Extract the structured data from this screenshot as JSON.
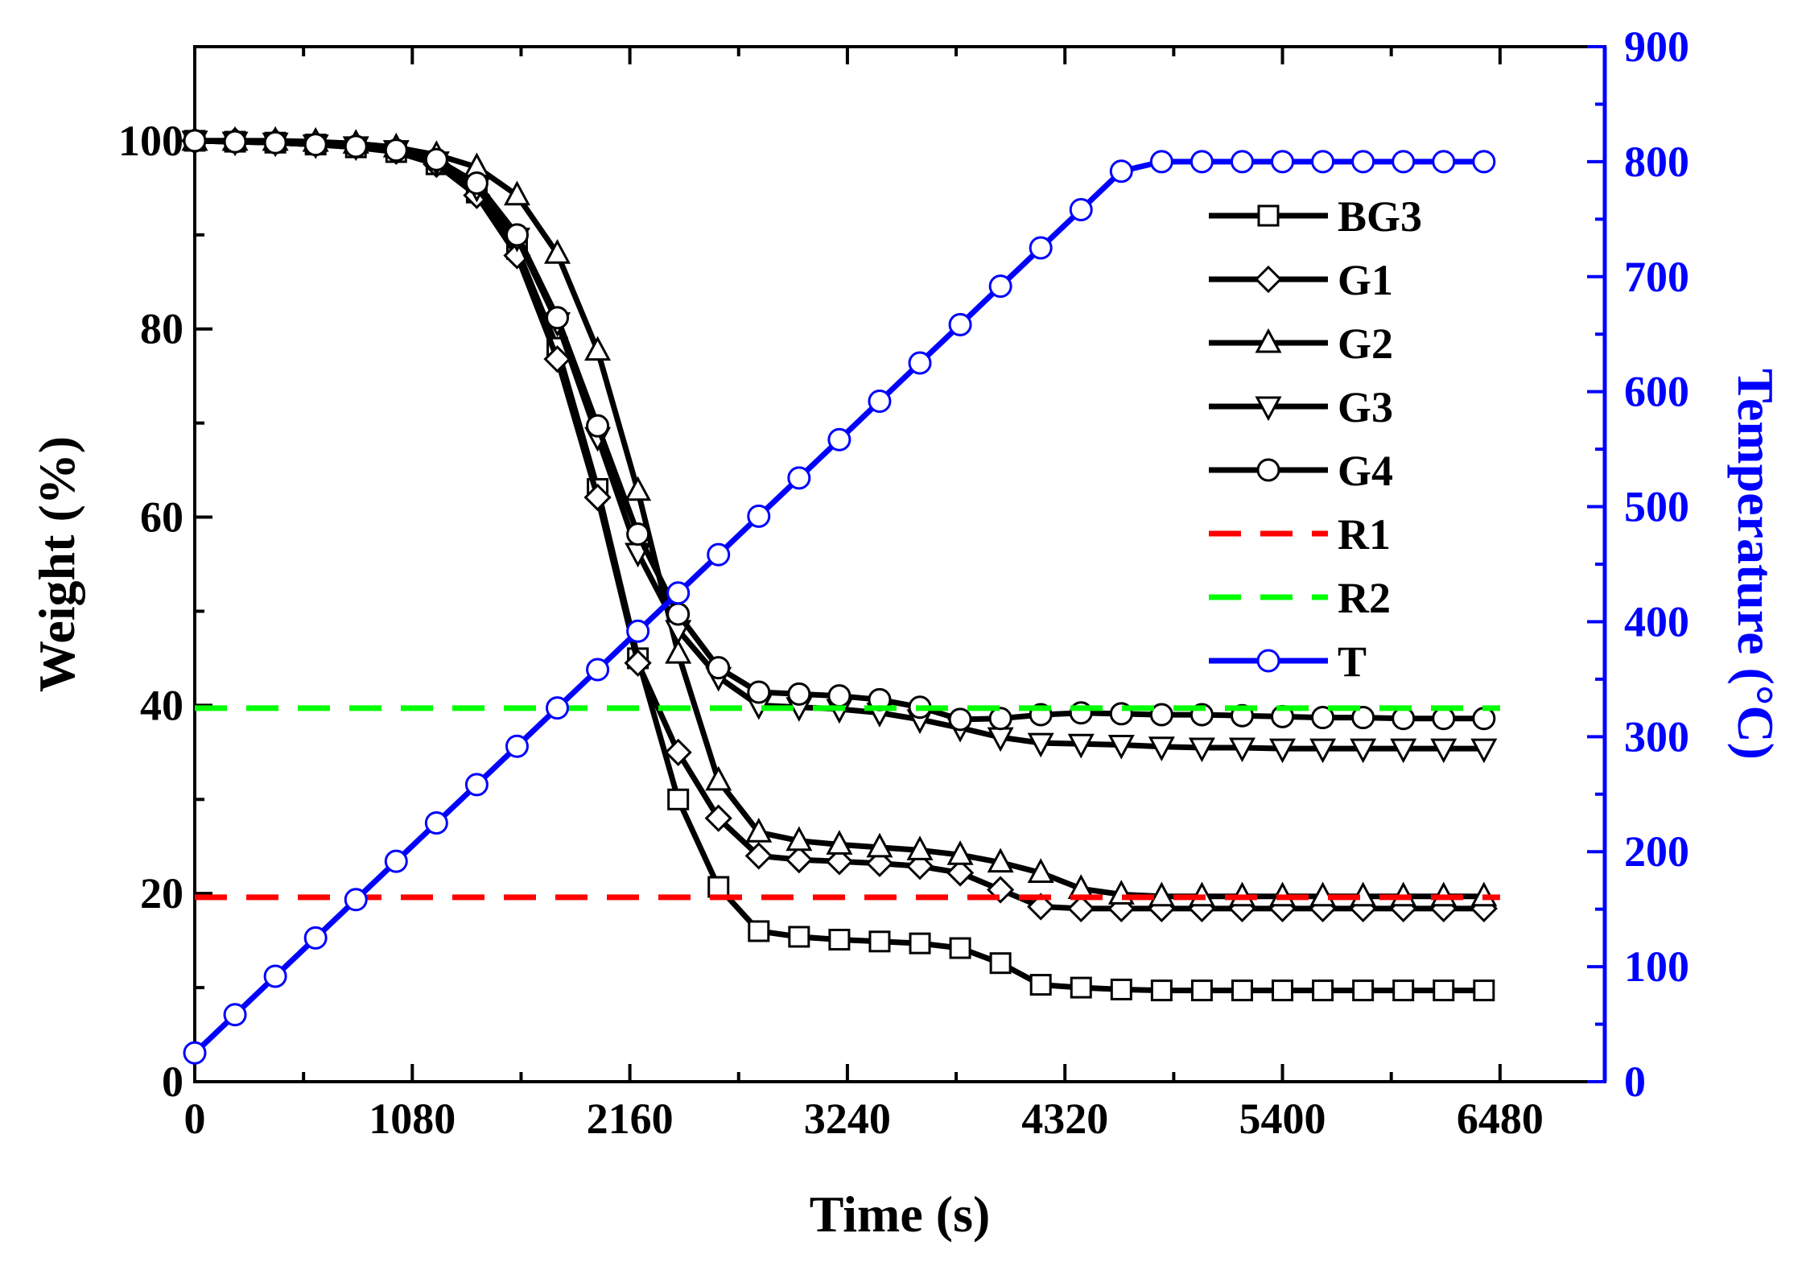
{
  "chart_data": {
    "type": "line",
    "x_label": "Time (s)",
    "y_label": "Weight (%)",
    "y2_label": "Temperature (°C)",
    "x_range": [
      0,
      7000
    ],
    "y_range": [
      0,
      110
    ],
    "y2_range": [
      0,
      900
    ],
    "x_ticks": [
      0,
      1080,
      2160,
      3240,
      4320,
      5400,
      6480
    ],
    "y_ticks": [
      0,
      20,
      40,
      60,
      80,
      100
    ],
    "y2_ticks": [
      0,
      100,
      200,
      300,
      400,
      500,
      600,
      700,
      800,
      900
    ],
    "x_tick_labels": [
      "0",
      "1080",
      "2160",
      "3240",
      "4320",
      "5400",
      "6480"
    ],
    "y_tick_labels": [
      "0",
      "20",
      "40",
      "60",
      "80",
      "100"
    ],
    "y2_tick_labels": [
      "0",
      "100",
      "200",
      "300",
      "400",
      "500",
      "600",
      "700",
      "800",
      "900"
    ],
    "legend_position": "right-top inside",
    "series": [
      {
        "name": "BG3",
        "axis": "left",
        "color": "#000000",
        "marker": "square",
        "dash": "solid",
        "x": [
          0,
          200,
          400,
          600,
          800,
          1000,
          1200,
          1400,
          1600,
          1800,
          2000,
          2200,
          2400,
          2600,
          2800,
          3000,
          3200,
          3400,
          3600,
          3800,
          4000,
          4200,
          4400,
          4600,
          4800,
          5000,
          5200,
          5400,
          5600,
          5800,
          6000,
          6200,
          6400
        ],
        "y": [
          100,
          99.9,
          99.8,
          99.6,
          99.3,
          98.8,
          97.5,
          94.5,
          88.5,
          78,
          63,
          45,
          30,
          20.7,
          16,
          15.4,
          15.1,
          14.9,
          14.7,
          14.2,
          12.6,
          10.3,
          10,
          9.8,
          9.7,
          9.7,
          9.7,
          9.7,
          9.7,
          9.7,
          9.7,
          9.7,
          9.7
        ]
      },
      {
        "name": "G1",
        "axis": "left",
        "color": "#000000",
        "marker": "diamond",
        "dash": "solid",
        "x": [
          0,
          200,
          400,
          600,
          800,
          1000,
          1200,
          1400,
          1600,
          1800,
          2000,
          2200,
          2400,
          2600,
          2800,
          3000,
          3200,
          3400,
          3600,
          3800,
          4000,
          4200,
          4400,
          4600,
          4800,
          5000,
          5200,
          5400,
          5600,
          5800,
          6000,
          6200,
          6400
        ],
        "y": [
          100,
          100,
          99.9,
          99.7,
          99.4,
          98.9,
          97.5,
          94.2,
          87.8,
          76.8,
          62.1,
          44.5,
          35,
          28,
          24,
          23.6,
          23.4,
          23.2,
          22.9,
          22.2,
          20.4,
          18.6,
          18.4,
          18.4,
          18.4,
          18.4,
          18.4,
          18.4,
          18.4,
          18.4,
          18.4,
          18.4,
          18.4
        ]
      },
      {
        "name": "G2",
        "axis": "left",
        "color": "#000000",
        "marker": "triangle-up",
        "dash": "solid",
        "x": [
          0,
          200,
          400,
          600,
          800,
          1000,
          1200,
          1400,
          1600,
          1800,
          2000,
          2200,
          2400,
          2600,
          2800,
          3000,
          3200,
          3400,
          3600,
          3800,
          4000,
          4200,
          4400,
          4600,
          4800,
          5000,
          5200,
          5400,
          5600,
          5800,
          6000,
          6200,
          6400
        ],
        "y": [
          100,
          100,
          100,
          99.9,
          99.7,
          99.3,
          98.5,
          97.2,
          94.2,
          88,
          77.7,
          62.8,
          45.5,
          32,
          26.5,
          25.6,
          25.2,
          24.9,
          24.6,
          24.1,
          23.3,
          22.2,
          20.5,
          19.9,
          19.7,
          19.7,
          19.7,
          19.7,
          19.7,
          19.7,
          19.7,
          19.7,
          19.7
        ]
      },
      {
        "name": "G3",
        "axis": "left",
        "color": "#000000",
        "marker": "triangle-down",
        "dash": "solid",
        "x": [
          0,
          200,
          400,
          600,
          800,
          1000,
          1200,
          1400,
          1600,
          1800,
          2000,
          2200,
          2400,
          2600,
          2800,
          3000,
          3200,
          3400,
          3600,
          3800,
          4000,
          4200,
          4400,
          4600,
          4800,
          5000,
          5200,
          5400,
          5600,
          5800,
          6000,
          6200,
          6400
        ],
        "y": [
          100,
          99.9,
          99.8,
          99.6,
          99.4,
          99,
          97.8,
          95,
          89.7,
          80.7,
          68.5,
          56.2,
          48,
          43,
          40,
          39.8,
          39.6,
          39.2,
          38.5,
          37.6,
          36.6,
          36,
          35.9,
          35.8,
          35.6,
          35.5,
          35.5,
          35.4,
          35.4,
          35.4,
          35.4,
          35.4,
          35.4
        ]
      },
      {
        "name": "G4",
        "axis": "left",
        "color": "#000000",
        "marker": "circle",
        "dash": "solid",
        "x": [
          0,
          200,
          400,
          600,
          800,
          1000,
          1200,
          1400,
          1600,
          1800,
          2000,
          2200,
          2400,
          2600,
          2800,
          3000,
          3200,
          3400,
          3600,
          3800,
          4000,
          4200,
          4400,
          4600,
          4800,
          5000,
          5200,
          5400,
          5600,
          5800,
          6000,
          6200,
          6400
        ],
        "y": [
          100,
          99.9,
          99.8,
          99.6,
          99.4,
          99,
          98,
          95.5,
          90,
          81.2,
          69.7,
          58.2,
          49.7,
          44,
          41.4,
          41.2,
          41,
          40.6,
          39.8,
          38.5,
          38.6,
          39,
          39.2,
          39.1,
          39,
          39,
          38.9,
          38.8,
          38.7,
          38.7,
          38.6,
          38.6,
          38.6
        ]
      },
      {
        "name": "R1",
        "axis": "left",
        "color": "#ff0000",
        "marker": "none",
        "dash": "dashed",
        "x": [
          0,
          6480
        ],
        "y": [
          19.6,
          19.6
        ]
      },
      {
        "name": "R2",
        "axis": "left",
        "color": "#00ff00",
        "marker": "none",
        "dash": "dashed",
        "x": [
          0,
          6480
        ],
        "y": [
          39.7,
          39.7
        ]
      },
      {
        "name": "T",
        "axis": "right",
        "color": "#0000ff",
        "marker": "circle",
        "dash": "solid",
        "x": [
          0,
          200,
          400,
          600,
          800,
          1000,
          1200,
          1400,
          1600,
          1800,
          2000,
          2200,
          2400,
          2600,
          2800,
          3000,
          3200,
          3400,
          3600,
          3800,
          4000,
          4200,
          4400,
          4600,
          4800,
          5000,
          5200,
          5400,
          5600,
          5800,
          6000,
          6200,
          6400
        ],
        "y": [
          25,
          58.3,
          91.7,
          125,
          158.3,
          191.7,
          225,
          258.3,
          291.7,
          325,
          358.3,
          391.7,
          425,
          458.3,
          491.7,
          525,
          558.3,
          591.7,
          625,
          658.3,
          691.7,
          725,
          758.3,
          791.7,
          800,
          800,
          800,
          800,
          800,
          800,
          800,
          800,
          800
        ]
      }
    ]
  }
}
